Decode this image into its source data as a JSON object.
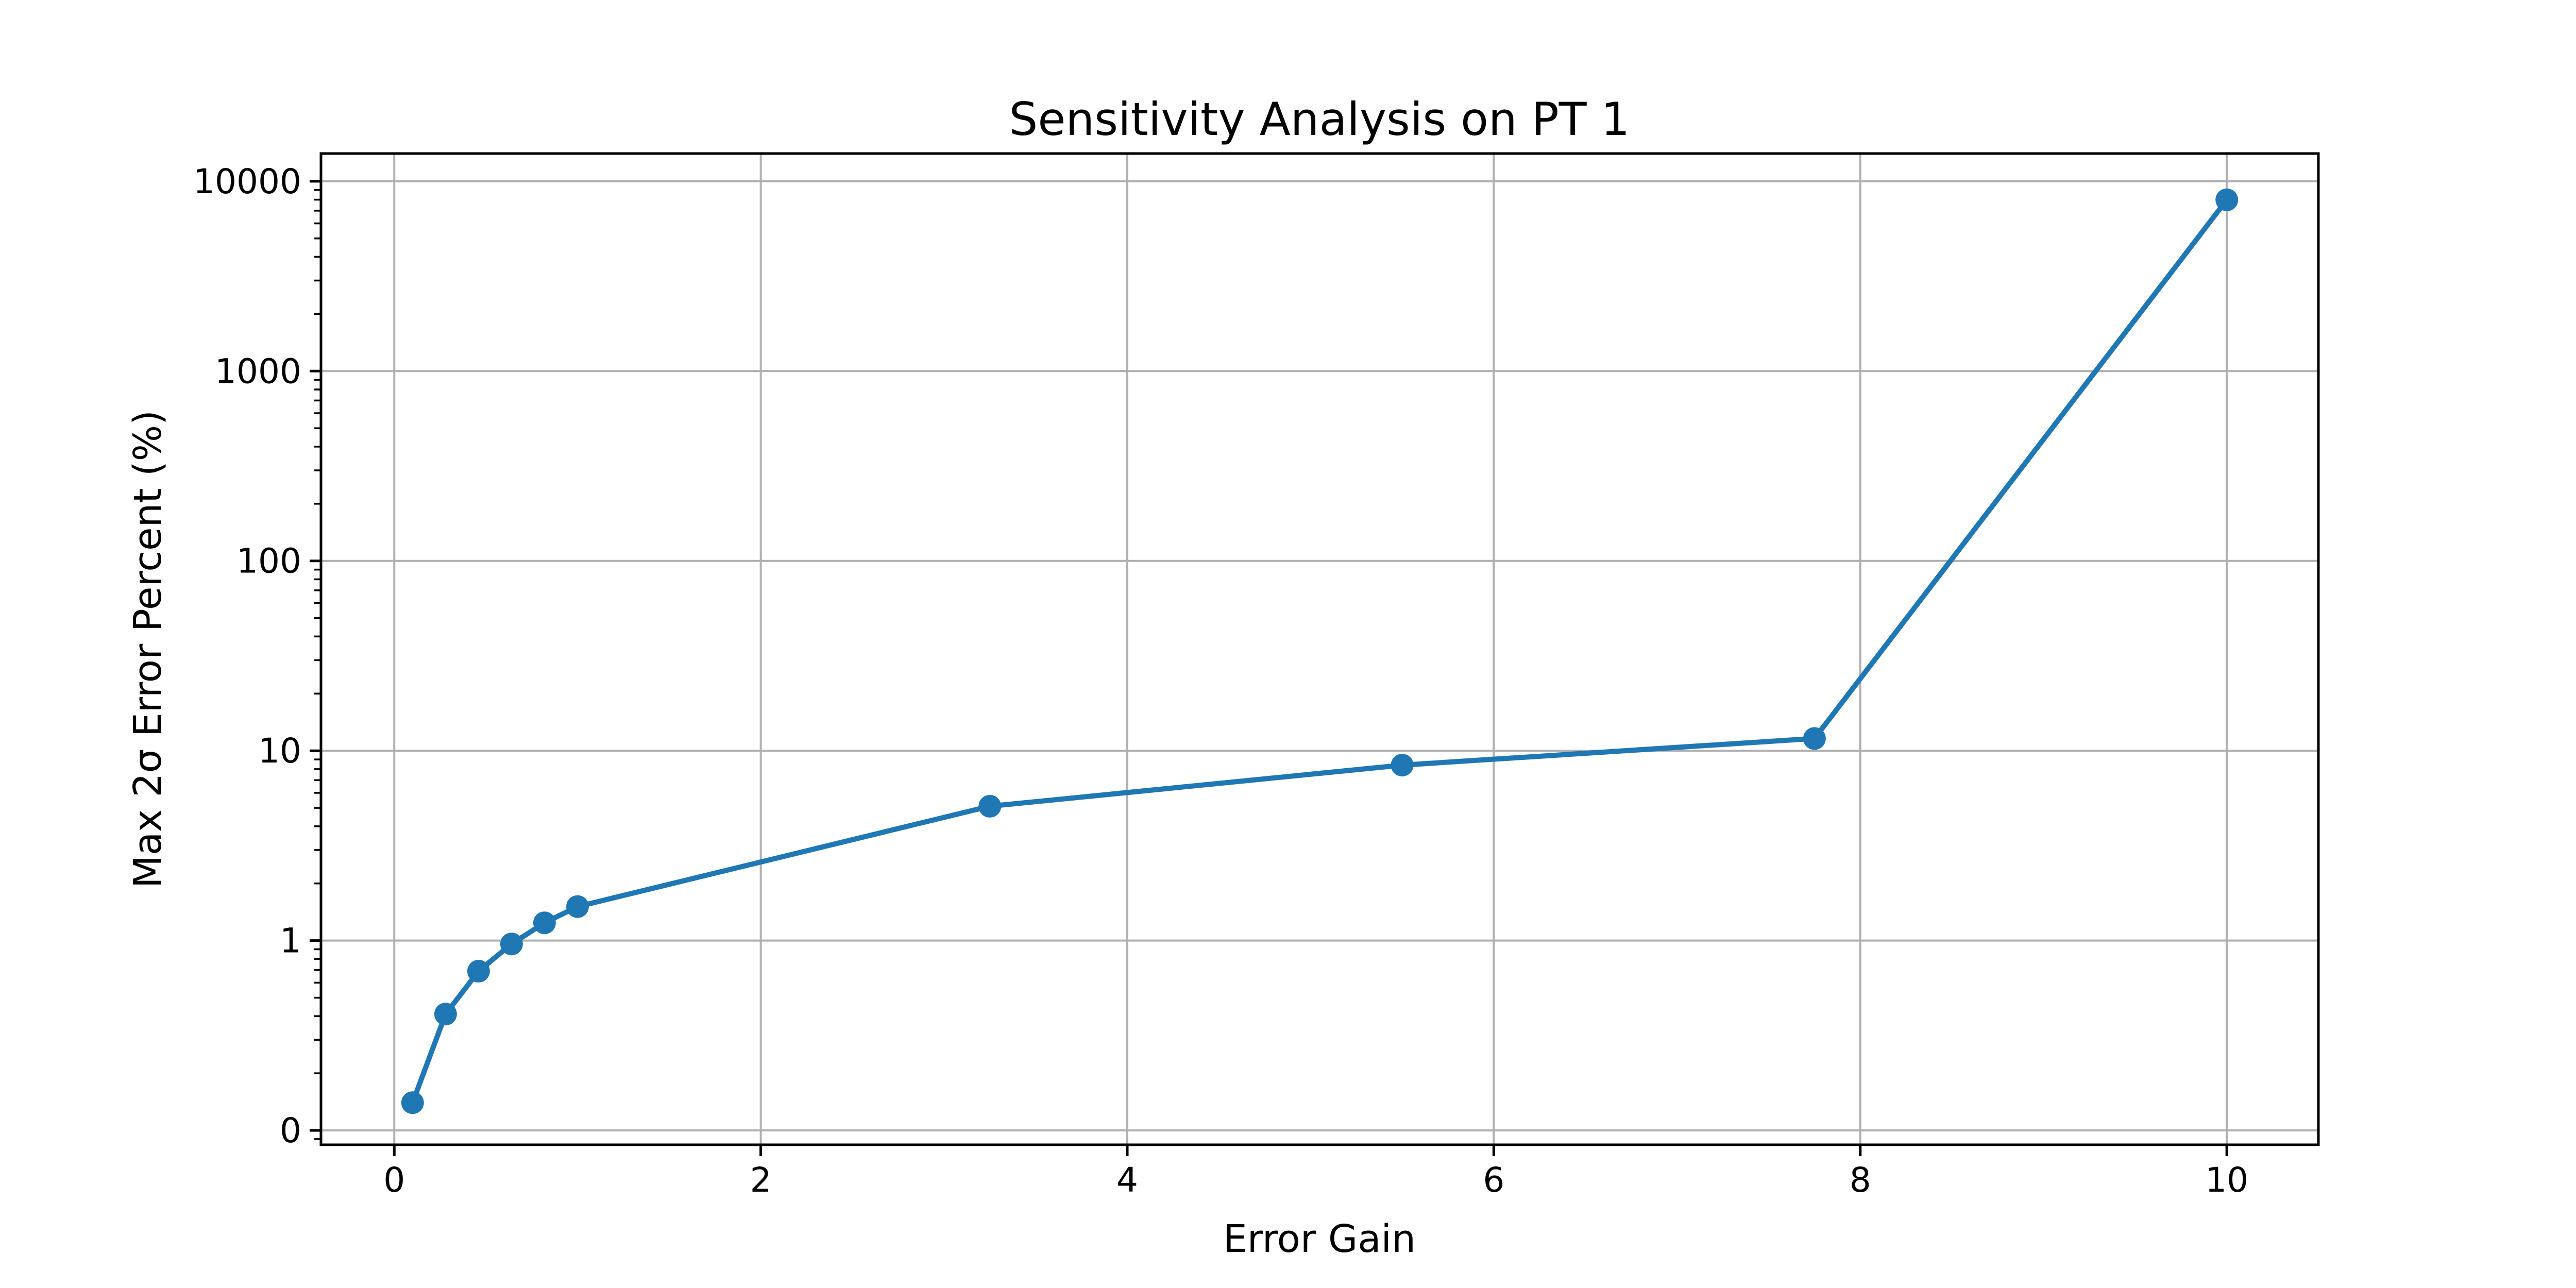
{
  "chart_data": {
    "type": "line",
    "title": "Sensitivity Analysis on PT 1",
    "xlabel": "Error Gain",
    "ylabel": "Max 2σ Error Percent (%)",
    "yscale": "symlog",
    "grid": true,
    "legend_position": "none",
    "x": [
      0.1,
      0.28,
      0.46,
      0.64,
      0.82,
      1.0,
      3.25,
      5.5,
      7.75,
      10.0
    ],
    "y": [
      0.14,
      0.41,
      0.69,
      0.96,
      1.24,
      1.51,
      5.1,
      8.4,
      11.6,
      7980
    ],
    "xlim": [
      -0.4,
      10.5
    ],
    "ylim_log": [
      0.084,
      14000
    ],
    "x_ticks": [
      0,
      2,
      4,
      6,
      8,
      10
    ],
    "y_tick_values": [
      0.1,
      1,
      10,
      100,
      1000,
      10000
    ],
    "y_tick_labels": [
      "0",
      "1",
      "10",
      "100",
      "1000",
      "10000"
    ],
    "colors": {
      "line": "#1f77b4",
      "marker": "#1f77b4",
      "grid": "#b0b0b0",
      "axis": "#000000",
      "background": "#ffffff"
    }
  }
}
